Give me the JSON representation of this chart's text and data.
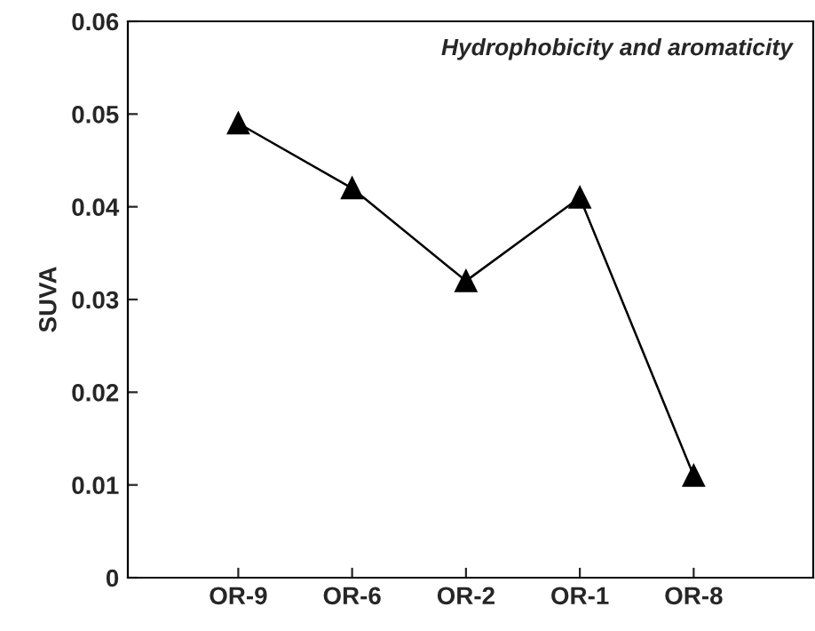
{
  "chart_data": {
    "type": "line",
    "ylabel": "SUVA",
    "categories": [
      "OR-9",
      "OR-6",
      "OR-2",
      "OR-1",
      "OR-8"
    ],
    "series": [
      {
        "color": "#000000",
        "values": [
          0.049,
          0.042,
          0.032,
          0.041,
          0.011
        ]
      }
    ],
    "ylim": [
      0,
      0.06
    ],
    "yticks": [
      {
        "value": 0,
        "label": "0"
      },
      0.01,
      0.02,
      0.03,
      0.04,
      0.05,
      0.06
    ],
    "marker": "triangle",
    "line_style": "solid",
    "grid": false,
    "legend": false,
    "annotations": [
      "Hydrophobicity and aromaticity"
    ]
  }
}
